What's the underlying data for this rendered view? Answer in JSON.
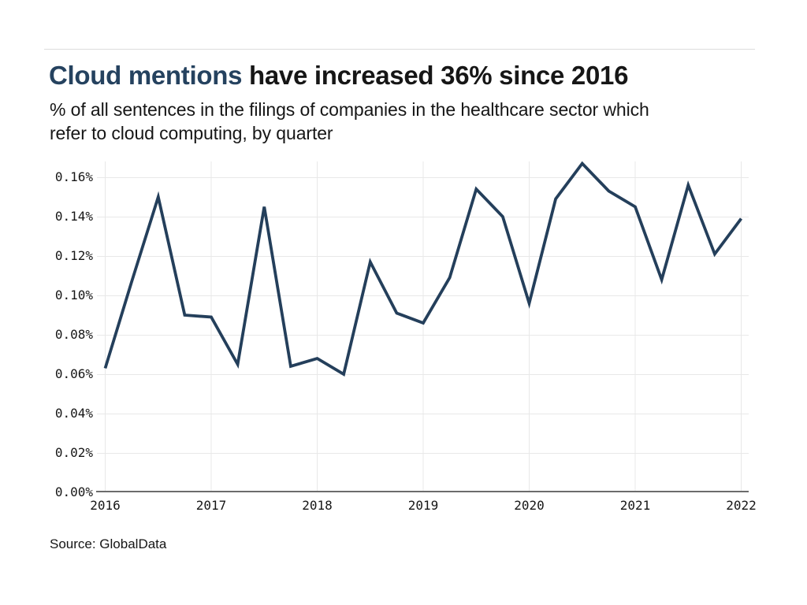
{
  "header": {
    "title_highlight": "Cloud mentions",
    "title_rest": " have increased 36% since 2016",
    "subtitle_lines": [
      "% of all sentences in the filings of companies in the healthcare sector which",
      "refer to cloud computing, by quarter"
    ]
  },
  "source": {
    "label": "Source: GlobalData"
  },
  "colors": {
    "accent_navy": "#25425f",
    "line": "#243f5b",
    "grid": "#e8e8e8",
    "axis": "#6c6c6c",
    "text": "#161616",
    "rule": "#dcdcdc"
  },
  "chart_data": {
    "type": "line",
    "title": "Cloud mentions have increased 36% since 2016",
    "subtitle": "% of all sentences in the filings of companies in the healthcare sector which refer to cloud computing, by quarter",
    "unit": "% of all sentences",
    "x": [
      "2016 Q1",
      "2016 Q2",
      "2016 Q3",
      "2016 Q4",
      "2017 Q1",
      "2017 Q2",
      "2017 Q3",
      "2017 Q4",
      "2018 Q1",
      "2018 Q2",
      "2018 Q3",
      "2018 Q4",
      "2019 Q1",
      "2019 Q2",
      "2019 Q3",
      "2019 Q4",
      "2020 Q1",
      "2020 Q2",
      "2020 Q3",
      "2020 Q4",
      "2021 Q1",
      "2021 Q2",
      "2021 Q3",
      "2021 Q4",
      "2022 Q1"
    ],
    "values": [
      0.063,
      0.107,
      0.15,
      0.09,
      0.089,
      0.065,
      0.145,
      0.064,
      0.068,
      0.06,
      0.117,
      0.091,
      0.086,
      0.109,
      0.154,
      0.14,
      0.096,
      0.149,
      0.167,
      0.153,
      0.145,
      0.108,
      0.156,
      0.121,
      0.139
    ],
    "x_tick_labels": [
      "2016",
      "2017",
      "2018",
      "2019",
      "2020",
      "2021",
      "2022"
    ],
    "y_ticks": [
      {
        "value": 0.0,
        "label": "0.00%"
      },
      {
        "value": 0.02,
        "label": "0.02%"
      },
      {
        "value": 0.04,
        "label": "0.04%"
      },
      {
        "value": 0.06,
        "label": "0.06%"
      },
      {
        "value": 0.08,
        "label": "0.08%"
      },
      {
        "value": 0.1,
        "label": "0.10%"
      },
      {
        "value": 0.12,
        "label": "0.12%"
      },
      {
        "value": 0.14,
        "label": "0.14%"
      },
      {
        "value": 0.16,
        "label": "0.16%"
      }
    ],
    "ylim": [
      0,
      0.168
    ],
    "grid": true,
    "legend": "none"
  }
}
